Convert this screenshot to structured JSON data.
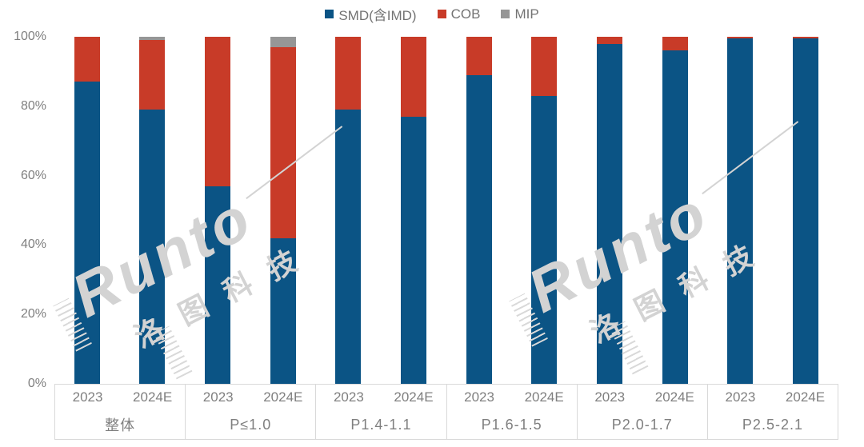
{
  "legend": {
    "items": [
      {
        "label": "SMD(含IMD)",
        "color": "#0B5485"
      },
      {
        "label": "COB",
        "color": "#C83B28"
      },
      {
        "label": "MIP",
        "color": "#969696"
      }
    ]
  },
  "y_axis": {
    "tick_labels": [
      "0%",
      "20%",
      "40%",
      "60%",
      "80%",
      "100%"
    ]
  },
  "chart_data": {
    "type": "bar",
    "stacked": true,
    "orientation": "vertical",
    "unit": "percent",
    "title": "",
    "ylim": [
      0,
      100
    ],
    "y_ticks": [
      0,
      20,
      40,
      60,
      80,
      100
    ],
    "grid": false,
    "legend_position": "top-center",
    "series_names": [
      "SMD(含IMD)",
      "COB",
      "MIP"
    ],
    "series_keys": [
      "smd",
      "cob",
      "mip"
    ],
    "colors": {
      "smd": "#0B5485",
      "cob": "#C83B28",
      "mip": "#969696"
    },
    "groups": [
      {
        "category": "整体",
        "bars": [
          {
            "year": "2023",
            "values": {
              "smd": 87,
              "cob": 13,
              "mip": 0
            }
          },
          {
            "year": "2024E",
            "values": {
              "smd": 79,
              "cob": 20,
              "mip": 1
            }
          }
        ]
      },
      {
        "category": "P≤1.0",
        "bars": [
          {
            "year": "2023",
            "values": {
              "smd": 57,
              "cob": 43,
              "mip": 0
            }
          },
          {
            "year": "2024E",
            "values": {
              "smd": 42,
              "cob": 55,
              "mip": 3
            }
          }
        ]
      },
      {
        "category": "P1.4-1.1",
        "bars": [
          {
            "year": "2023",
            "values": {
              "smd": 79,
              "cob": 21,
              "mip": 0
            }
          },
          {
            "year": "2024E",
            "values": {
              "smd": 77,
              "cob": 23,
              "mip": 0
            }
          }
        ]
      },
      {
        "category": "P1.6-1.5",
        "bars": [
          {
            "year": "2023",
            "values": {
              "smd": 89,
              "cob": 11,
              "mip": 0
            }
          },
          {
            "year": "2024E",
            "values": {
              "smd": 83,
              "cob": 17,
              "mip": 0
            }
          }
        ]
      },
      {
        "category": "P2.0-1.7",
        "bars": [
          {
            "year": "2023",
            "values": {
              "smd": 98,
              "cob": 2,
              "mip": 0
            }
          },
          {
            "year": "2024E",
            "values": {
              "smd": 96,
              "cob": 4,
              "mip": 0
            }
          }
        ]
      },
      {
        "category": "P2.5-2.1",
        "bars": [
          {
            "year": "2023",
            "values": {
              "smd": 99.5,
              "cob": 0.5,
              "mip": 0
            }
          },
          {
            "year": "2024E",
            "values": {
              "smd": 99.5,
              "cob": 0.5,
              "mip": 0
            }
          }
        ]
      }
    ]
  },
  "watermark": {
    "brand": "Runto",
    "cn_chars": "洛图科技"
  }
}
